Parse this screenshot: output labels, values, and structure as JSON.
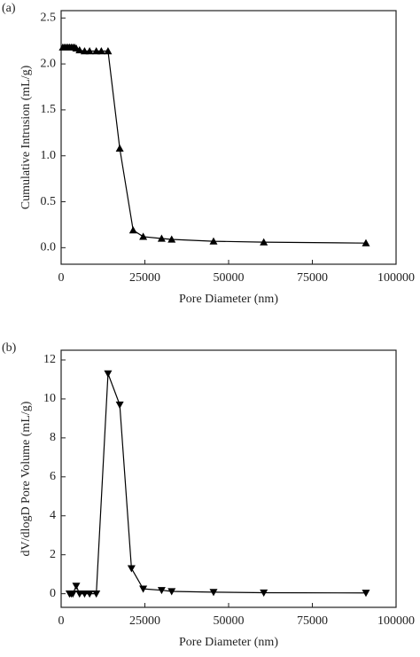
{
  "chart_data": [
    {
      "type": "line",
      "panel_label": "(a)",
      "x_label": "Pore Diameter  (nm)",
      "y_label": "Cumulative Intrusion (mL/g)",
      "marker": "triangle-up",
      "color": "#000000",
      "x": [
        500,
        1000,
        1500,
        2000,
        2500,
        3000,
        3500,
        4000,
        4500,
        5500,
        7000,
        8500,
        10500,
        12000,
        14000,
        17500,
        21500,
        24500,
        30000,
        33000,
        45500,
        60500,
        91000
      ],
      "values": [
        2.18,
        2.18,
        2.18,
        2.18,
        2.18,
        2.18,
        2.18,
        2.18,
        2.17,
        2.15,
        2.14,
        2.14,
        2.14,
        2.14,
        2.14,
        1.08,
        0.19,
        0.12,
        0.1,
        0.09,
        0.07,
        0.06,
        0.05
      ],
      "xlim": [
        0,
        100000
      ],
      "xticks": [
        0,
        25000,
        50000,
        75000,
        100000
      ],
      "ylim": [
        -0.18,
        2.58
      ],
      "yticks": [
        {
          "value": 0,
          "label": "0.0"
        },
        0.5,
        {
          "value": 1,
          "label": "1.0"
        },
        1.5,
        {
          "value": 2,
          "label": "2.0"
        },
        2.5
      ]
    },
    {
      "type": "line",
      "panel_label": "(b)",
      "x_label": "Pore Diameter  (nm)",
      "y_label": "dV/dlogD Pore Volume  (mL/g)",
      "marker": "triangle-down",
      "color": "#000000",
      "x": [
        2500,
        3000,
        3500,
        4500,
        5500,
        7000,
        8500,
        10500,
        14000,
        17500,
        21000,
        24500,
        30000,
        33000,
        45500,
        60500,
        91000
      ],
      "values": [
        0,
        0,
        0,
        0.4,
        0,
        0,
        0,
        0,
        11.3,
        9.7,
        1.3,
        0.25,
        0.18,
        0.12,
        0.08,
        0.05,
        0.04
      ],
      "xlim": [
        0,
        100000
      ],
      "xticks": [
        0,
        25000,
        50000,
        75000,
        100000
      ],
      "ylim": [
        -0.7,
        12.5
      ],
      "yticks": [
        0,
        2,
        4,
        6,
        8,
        10,
        12
      ]
    }
  ]
}
